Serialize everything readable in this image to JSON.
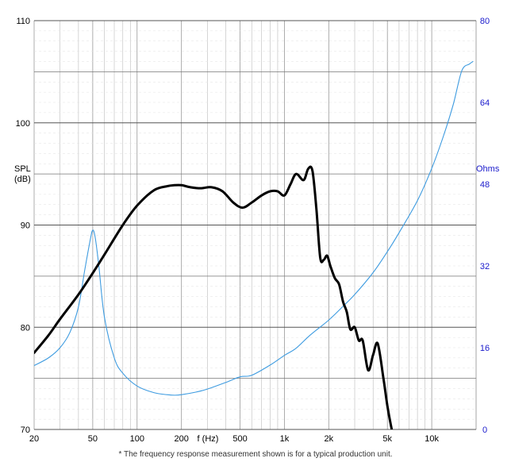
{
  "chart_data": {
    "type": "line",
    "x_scale": "log",
    "x_ticks": [
      20,
      50,
      100,
      200,
      500,
      1000,
      2000,
      5000,
      10000
    ],
    "x_tick_labels": [
      "20",
      "50",
      "100",
      "200",
      "500",
      "1k",
      "2k",
      "5k",
      "10k"
    ],
    "xlabel": "f (Hz)",
    "xlim": [
      20,
      20000
    ],
    "ylabel": "SPL\n(dB)",
    "ylim": [
      70,
      110
    ],
    "y_ticks": [
      70,
      80,
      90,
      100,
      110
    ],
    "y2label": "Ohms",
    "y2lim": [
      0,
      80
    ],
    "y2_ticks": [
      0,
      16,
      32,
      48,
      64,
      80
    ],
    "grid": true,
    "colors": {
      "spl": "#000000",
      "impedance": "#3d9be0",
      "right_axis": "#1a1acc",
      "grid_major": "#555555",
      "grid_minor": "#bbbbbb"
    },
    "series": [
      {
        "key": "spl",
        "axis": "left",
        "x": [
          20,
          25,
          30,
          40,
          50,
          60,
          80,
          100,
          130,
          160,
          180,
          200,
          230,
          270,
          320,
          380,
          450,
          520,
          600,
          700,
          800,
          900,
          1000,
          1100,
          1200,
          1350,
          1450,
          1550,
          1650,
          1750,
          1850,
          1950,
          2050,
          2200,
          2350,
          2500,
          2650,
          2800,
          3000,
          3200,
          3400,
          3700,
          4000,
          4300,
          4700,
          5000,
          5300,
          5700
        ],
        "y": [
          77.5,
          79.2,
          80.8,
          83.2,
          85.3,
          87.1,
          90,
          91.9,
          93.4,
          93.8,
          93.9,
          93.9,
          93.7,
          93.6,
          93.7,
          93.3,
          92.2,
          91.7,
          92.2,
          92.9,
          93.3,
          93.3,
          92.9,
          94,
          95,
          94.4,
          95.5,
          95.3,
          91.5,
          86.8,
          86.6,
          87,
          86,
          84.8,
          84.2,
          82.5,
          81.5,
          79.8,
          80,
          78.7,
          78.7,
          75.8,
          77.3,
          78.4,
          75,
          72.3,
          70.3,
          68.3
        ]
      },
      {
        "key": "impedance",
        "axis": "right",
        "x": [
          20,
          25,
          30,
          35,
          40,
          44,
          48,
          50,
          52,
          55,
          60,
          70,
          80,
          100,
          130,
          160,
          180,
          200,
          250,
          300,
          400,
          500,
          600,
          800,
          1000,
          1200,
          1500,
          2000,
          2500,
          3000,
          4000,
          5000,
          6000,
          8000,
          10000,
          12000,
          14000,
          16000,
          18000,
          19000
        ],
        "y": [
          12.5,
          14,
          16,
          19,
          24,
          31,
          37,
          39,
          37.5,
          32,
          22,
          14,
          11,
          8.5,
          7.2,
          6.8,
          6.7,
          6.8,
          7.3,
          7.9,
          9.2,
          10.3,
          10.6,
          12.6,
          14.5,
          15.9,
          18.5,
          21.4,
          24.1,
          26.4,
          30.7,
          34.8,
          38.5,
          44.8,
          51.1,
          57.4,
          63.6,
          70.2,
          71.5,
          72
        ]
      }
    ]
  },
  "footnote": "* The frequency response measurement shown is for a typical production unit."
}
